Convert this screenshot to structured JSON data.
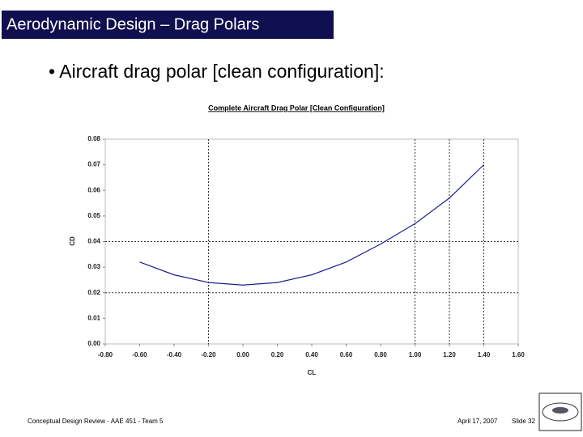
{
  "slide": {
    "title": "Aerodynamic Design – Drag Polars",
    "bullet": "• Aircraft drag polar [clean configuration]:",
    "footer_left": "Conceptual Design Review - AAE 451 - Team 5",
    "footer_date": "April 17, 2007",
    "footer_slide": "Slide 32"
  },
  "chart_data": {
    "type": "line",
    "title": "Complete Aircraft Drag Polar [Clean Configuration]",
    "x_label": "CL",
    "y_label": "CD",
    "x": [
      -0.6,
      -0.4,
      -0.2,
      0,
      0.2,
      0.4,
      0.6,
      0.8,
      1.0,
      1.2,
      1.4
    ],
    "series": [
      {
        "color": "#1f1f8f",
        "values": [
          0.032,
          0.027,
          0.024,
          0.023,
          0.024,
          0.027,
          0.032,
          0.039,
          0.047,
          0.057,
          0.07
        ]
      }
    ],
    "xlim": [
      -0.8,
      1.6
    ],
    "xticks": [
      {
        "value": -0.8,
        "label": "-0.80"
      },
      {
        "value": -0.6,
        "label": "-0.60"
      },
      {
        "value": -0.4,
        "label": "-0.40"
      },
      {
        "value": -0.2,
        "label": "-0.20"
      },
      {
        "value": 0,
        "label": "0.00"
      },
      {
        "value": 0.2,
        "label": "0.20"
      },
      {
        "value": 0.4,
        "label": "0.40"
      },
      {
        "value": 0.6,
        "label": "0.60"
      },
      {
        "value": 0.8,
        "label": "0.80"
      },
      {
        "value": 1.0,
        "label": "1.00"
      },
      {
        "value": 1.2,
        "label": "1.20"
      },
      {
        "value": 1.4,
        "label": "1.40"
      },
      {
        "value": 1.6,
        "label": "1.60"
      }
    ],
    "ylim": [
      0,
      0.08
    ],
    "yticks": [
      {
        "value": 0,
        "label": "0.00"
      },
      {
        "value": 0.01,
        "label": "0.01"
      },
      {
        "value": 0.02,
        "label": "0.02"
      },
      {
        "value": 0.03,
        "label": "0.03"
      },
      {
        "value": 0.04,
        "label": "0.04"
      },
      {
        "value": 0.05,
        "label": "0.05"
      },
      {
        "value": 0.06,
        "label": "0.06"
      },
      {
        "value": 0.07,
        "label": "0.07"
      },
      {
        "value": 0.08,
        "label": "0.08"
      }
    ],
    "reference_x": [
      -0.2,
      1.0,
      1.2,
      1.4
    ],
    "reference_y": [
      0.04,
      0.02
    ]
  }
}
